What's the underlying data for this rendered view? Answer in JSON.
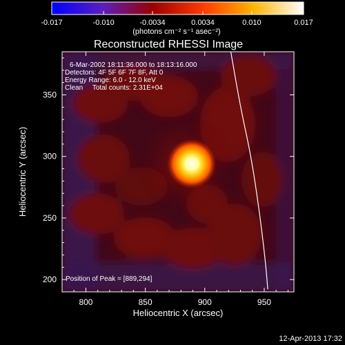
{
  "chart_data": {
    "type": "heatmap",
    "title": "Reconstructed RHESSI Image",
    "xlabel": "Heliocentric X (arcsec)",
    "ylabel": "Heliocentric Y (arcsec)",
    "xlim": [
      780,
      975
    ],
    "ylim": [
      190,
      385
    ],
    "x_ticks": [
      800,
      850,
      900,
      950
    ],
    "y_ticks": [
      200,
      250,
      300,
      350
    ],
    "peak": {
      "x": 889,
      "y": 294
    },
    "colorbar": {
      "ticks": [
        "-0.017",
        "-0.010",
        "-0.0034",
        "0.0034",
        "0.010",
        "0.017"
      ],
      "range": [
        -0.017,
        0.017
      ],
      "units": "(photons cm⁻² s⁻¹ asec⁻²)",
      "colors": [
        "#0000ff",
        "#5a1fbe",
        "#9a0000",
        "#ff3a00",
        "#ffb400",
        "#ffffff"
      ]
    },
    "annotations": [
      "6-Mar-2002 18:11:36.000 to 18:13:16.000",
      "Detectors: 4F 5F 6F 7F 8F, Att 0",
      "Energy Range: 6.0 - 12.0 keV",
      "Clean     Total counts: 2.31E+04"
    ],
    "peak_label": "Position of Peak = [889,294]",
    "limb_curve": [
      [
        921,
        390
      ],
      [
        930,
        340
      ],
      [
        939,
        300
      ],
      [
        946,
        255
      ],
      [
        951,
        215
      ],
      [
        953,
        192
      ]
    ]
  },
  "footer": {
    "timestamp": "12-Apr-2013 17:32"
  }
}
